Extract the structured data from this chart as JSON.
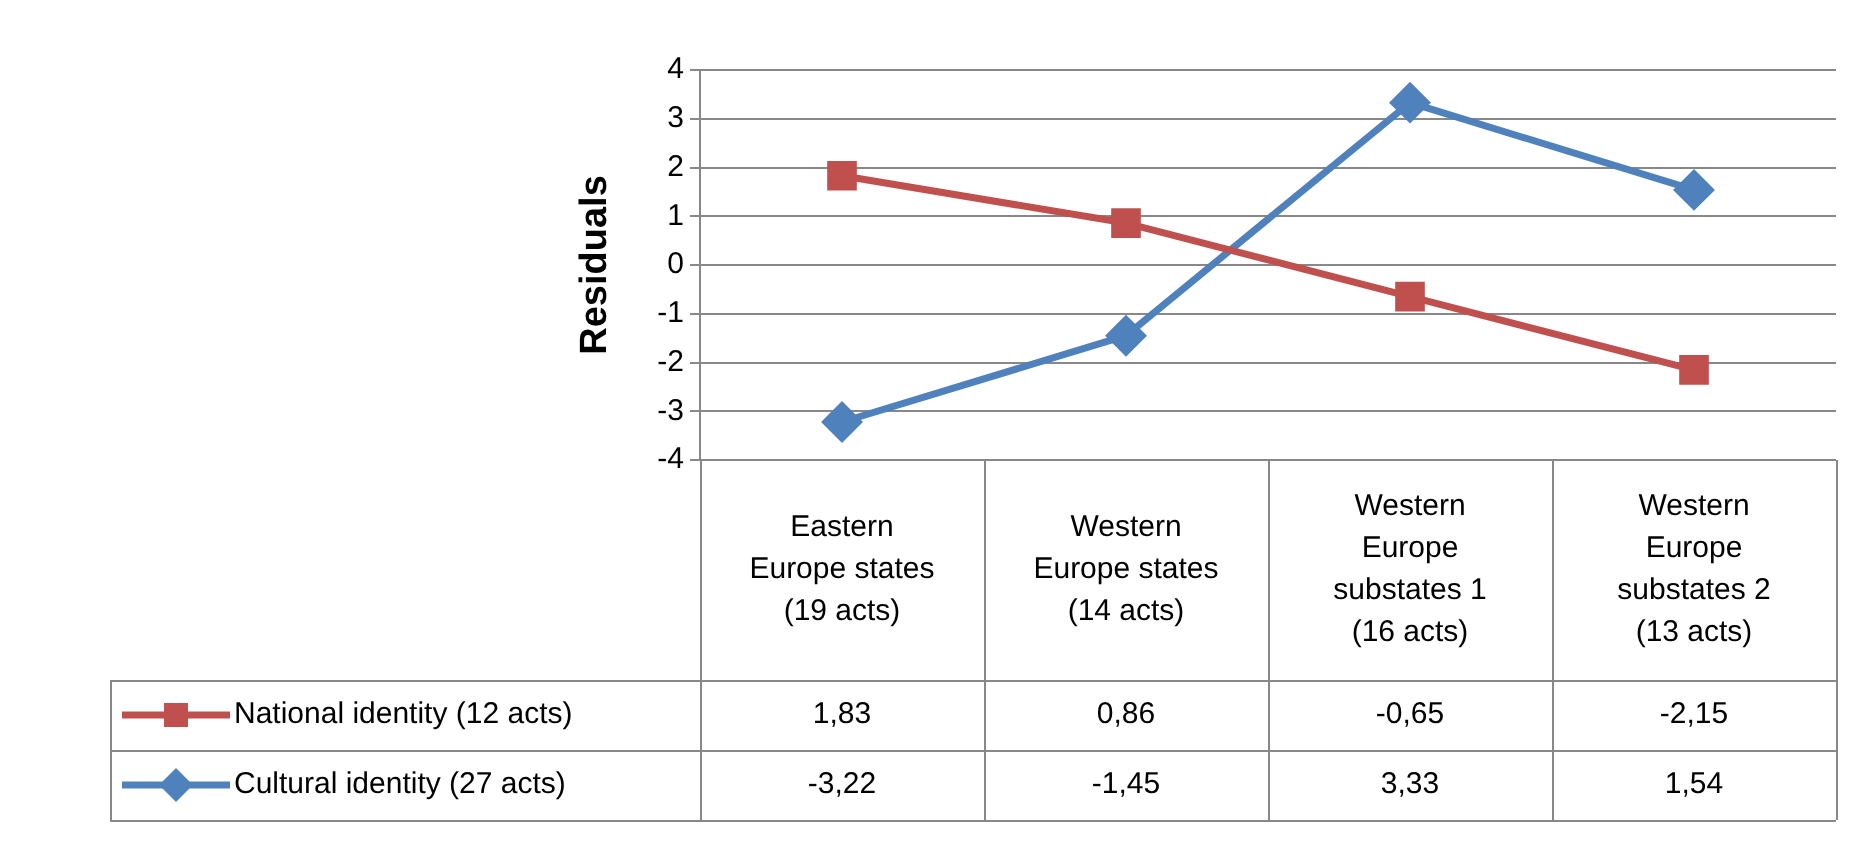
{
  "chart_data": {
    "type": "line",
    "ylabel": "Residuals",
    "categories": [
      "Eastern Europe states (19 acts)",
      "Western Europe states (14 acts)",
      "Western Europe substates 1 (16 acts)",
      "Western Europe substates 2 (13 acts)"
    ],
    "series": [
      {
        "name": "National identity (12 acts)",
        "color": "#c0504d",
        "marker": "square",
        "values": [
          1.83,
          0.86,
          -0.65,
          -2.15
        ],
        "value_labels": [
          "1,83",
          "0,86",
          "-0,65",
          "-2,15"
        ]
      },
      {
        "name": "Cultural identity (27 acts)",
        "color": "#4f81bd",
        "marker": "diamond",
        "values": [
          -3.22,
          -1.45,
          3.33,
          1.54
        ],
        "value_labels": [
          "-3,22",
          "-1,45",
          "3,33",
          "1,54"
        ]
      }
    ],
    "ylim": [
      -4,
      4
    ],
    "yticks": [
      -4,
      -3,
      -2,
      -1,
      0,
      1,
      2,
      3,
      4
    ],
    "grid": "y",
    "line_style": "solid",
    "legend": "bottom left"
  }
}
